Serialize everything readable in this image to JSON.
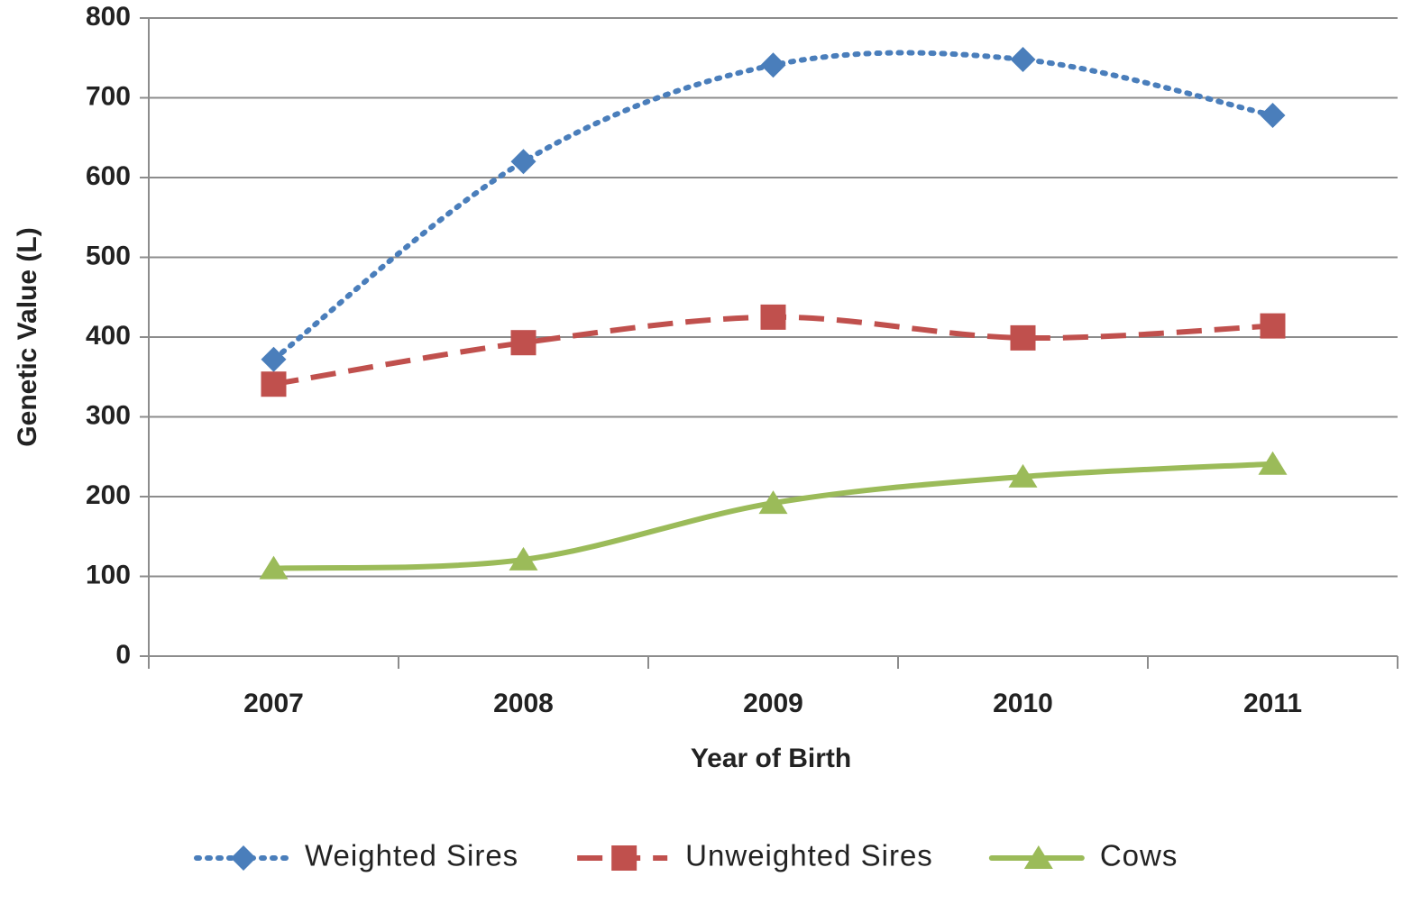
{
  "chart_data": {
    "type": "line",
    "smooth": true,
    "x_label": "Year of Birth",
    "y_label": "Genetic Value (L)",
    "categories": [
      "2007",
      "2008",
      "2009",
      "2010",
      "2011"
    ],
    "series": [
      {
        "name": "Weighted Sires",
        "color": "#4a7ebb",
        "line_style": "dotted",
        "marker": "diamond",
        "values": [
          372,
          620,
          741,
          748,
          678
        ]
      },
      {
        "name": "Unweighted Sires",
        "color": "#c0504d",
        "line_style": "dashed",
        "marker": "square",
        "values": [
          341,
          393,
          425,
          399,
          414
        ]
      },
      {
        "name": "Cows",
        "color": "#9bbb59",
        "line_style": "solid",
        "marker": "triangle",
        "values": [
          110,
          121,
          192,
          225,
          241
        ]
      }
    ],
    "ylim": [
      0,
      800
    ],
    "yticks": [
      0,
      100,
      200,
      300,
      400,
      500,
      600,
      700,
      800
    ],
    "grid": true,
    "legend": "bottom"
  }
}
